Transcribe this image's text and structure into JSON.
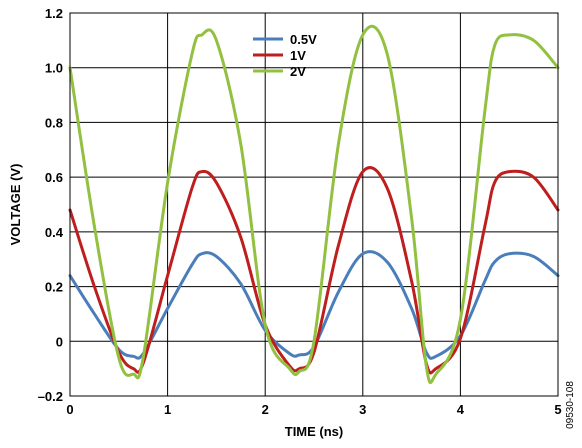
{
  "chart_data": {
    "type": "line",
    "xlabel": "TIME (ns)",
    "ylabel": "VOLTAGE (V)",
    "xlim": [
      0,
      5
    ],
    "ylim": [
      -0.2,
      1.2
    ],
    "x_ticks": [
      "0",
      "1",
      "2",
      "3",
      "4",
      "5"
    ],
    "y_ticks": [
      "–0.2",
      "0",
      "0.2",
      "0.4",
      "0.6",
      "0.8",
      "1.0",
      "1.2"
    ],
    "grid": true,
    "legend_position": "top-center",
    "figure_id": "09530-108",
    "x": [
      0,
      0.25,
      0.5,
      0.65,
      0.75,
      1.0,
      1.25,
      1.35,
      1.5,
      1.75,
      2.0,
      2.25,
      2.35,
      2.5,
      2.75,
      3.0,
      3.25,
      3.5,
      3.65,
      3.75,
      4.0,
      4.25,
      4.35,
      4.5,
      4.75,
      5.0
    ],
    "series": [
      {
        "name": "0.5V",
        "color": "#4a7ebb",
        "values": [
          0.24,
          0.1,
          -0.03,
          -0.055,
          -0.045,
          0.12,
          0.28,
          0.32,
          0.31,
          0.21,
          0.04,
          -0.045,
          -0.05,
          -0.02,
          0.18,
          0.32,
          0.29,
          0.12,
          -0.04,
          -0.055,
          0.02,
          0.22,
          0.29,
          0.32,
          0.31,
          0.24
        ]
      },
      {
        "name": "1V",
        "color": "#be1e1e",
        "values": [
          0.48,
          0.2,
          -0.04,
          -0.1,
          -0.08,
          0.24,
          0.56,
          0.62,
          0.58,
          0.38,
          0.06,
          -0.09,
          -0.1,
          -0.04,
          0.35,
          0.62,
          0.56,
          0.22,
          -0.08,
          -0.1,
          0.01,
          0.42,
          0.58,
          0.62,
          0.6,
          0.48
        ]
      },
      {
        "name": "2V",
        "color": "#92c041",
        "values": [
          1.0,
          0.42,
          -0.06,
          -0.12,
          -0.06,
          0.58,
          1.05,
          1.12,
          1.1,
          0.72,
          0.06,
          -0.1,
          -0.11,
          0.0,
          0.72,
          1.12,
          1.05,
          0.45,
          -0.09,
          -0.12,
          0.08,
          0.84,
          1.08,
          1.12,
          1.1,
          1.0
        ]
      }
    ]
  }
}
